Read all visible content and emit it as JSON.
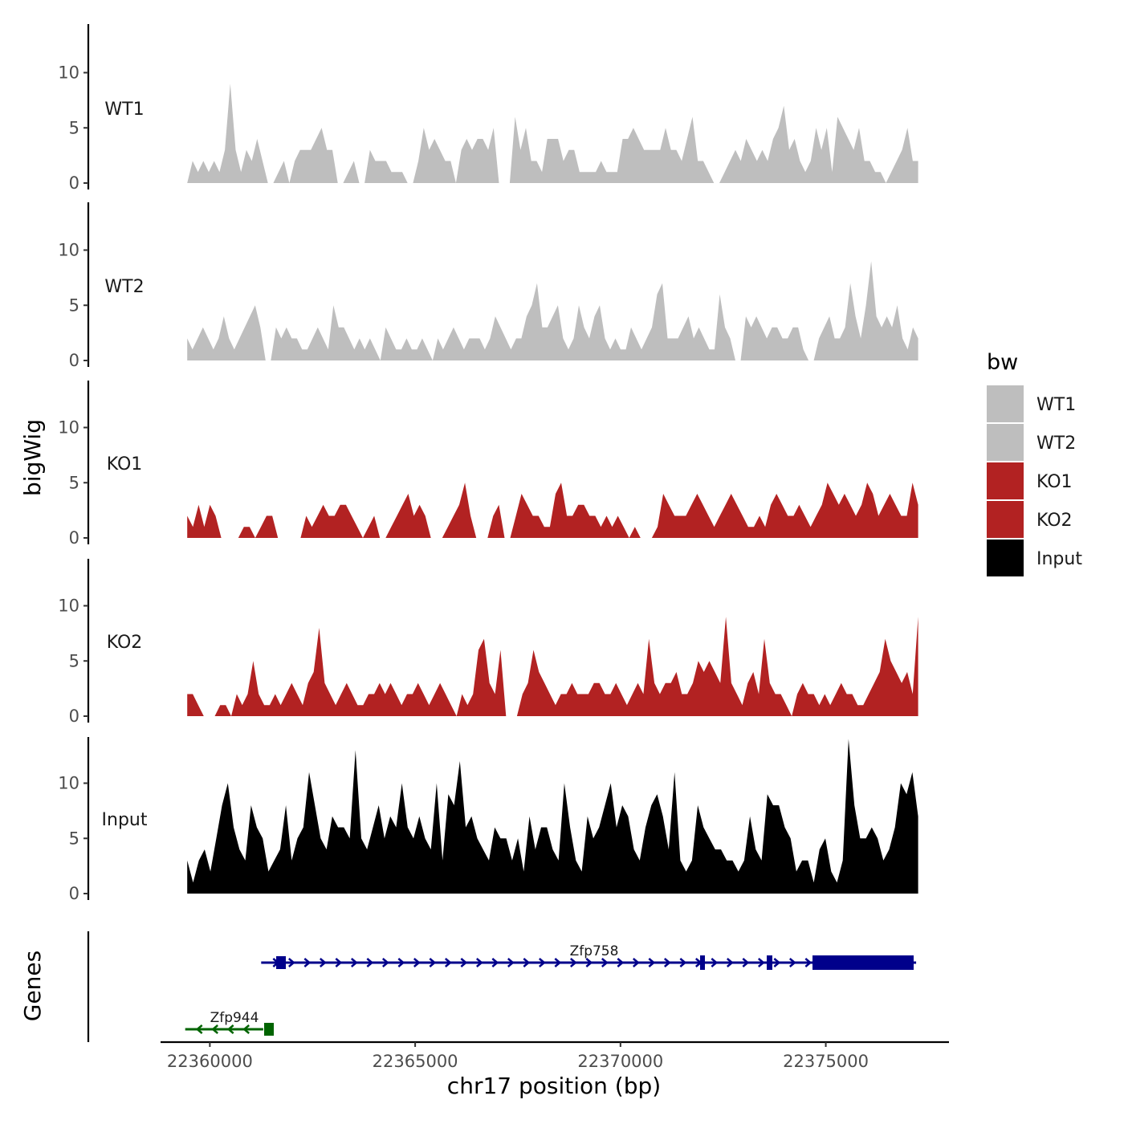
{
  "chart_data": {
    "type": "area",
    "title": "",
    "xlabel": "chr17 position (bp)",
    "ylabel": "bigWig",
    "genes_label": "Genes",
    "xlim": [
      22358800,
      22378000
    ],
    "x_ticks": [
      22360000,
      22365000,
      22370000,
      22375000
    ],
    "x_tick_labels": [
      "22360000",
      "22365000",
      "22370000",
      "22375000"
    ],
    "ylim": [
      0,
      14
    ],
    "y_ticks": [
      0,
      5,
      10
    ],
    "y_tick_labels": [
      "0",
      "5",
      "10"
    ],
    "x_start": 22359450,
    "x_end": 22377250,
    "series": [
      {
        "name": "WT1",
        "group": "WT",
        "color": "#BEBEBE",
        "values": [
          0,
          2,
          1,
          2,
          1,
          2,
          1,
          3,
          9,
          3,
          1,
          3,
          2,
          4,
          2,
          0,
          0,
          1,
          2,
          0,
          2,
          3,
          3,
          3,
          4,
          5,
          3,
          3,
          0,
          0,
          1,
          2,
          0,
          0,
          3,
          2,
          2,
          2,
          1,
          1,
          1,
          0,
          0,
          2,
          5,
          3,
          4,
          3,
          2,
          2,
          0,
          3,
          4,
          3,
          4,
          4,
          3,
          5,
          0,
          0,
          0,
          6,
          3,
          5,
          2,
          2,
          1,
          4,
          4,
          4,
          2,
          3,
          3,
          1,
          1,
          1,
          1,
          2,
          1,
          1,
          1,
          4,
          4,
          5,
          4,
          3,
          3,
          3,
          3,
          5,
          3,
          3,
          2,
          4,
          6,
          2,
          2,
          1,
          0,
          0,
          1,
          2,
          3,
          2,
          4,
          3,
          2,
          3,
          2,
          4,
          5,
          7,
          3,
          4,
          2,
          1,
          2,
          5,
          3,
          5,
          1,
          6,
          5,
          4,
          3,
          5,
          2,
          2,
          1,
          1,
          0,
          1,
          2,
          3,
          5,
          2,
          2
        ]
      },
      {
        "name": "WT2",
        "group": "WT",
        "color": "#BEBEBE",
        "values": [
          2,
          1,
          2,
          3,
          2,
          1,
          2,
          4,
          2,
          1,
          2,
          3,
          4,
          5,
          3,
          0,
          0,
          3,
          2,
          3,
          2,
          2,
          1,
          1,
          2,
          3,
          2,
          1,
          5,
          3,
          3,
          2,
          1,
          2,
          1,
          2,
          1,
          0,
          3,
          2,
          1,
          1,
          2,
          1,
          1,
          2,
          1,
          0,
          2,
          1,
          2,
          3,
          2,
          1,
          2,
          2,
          2,
          1,
          2,
          4,
          3,
          2,
          1,
          2,
          2,
          4,
          5,
          7,
          3,
          3,
          4,
          5,
          2,
          1,
          2,
          5,
          3,
          2,
          4,
          5,
          2,
          1,
          2,
          1,
          1,
          3,
          2,
          1,
          2,
          3,
          6,
          7,
          2,
          2,
          2,
          3,
          4,
          2,
          3,
          2,
          1,
          1,
          6,
          3,
          2,
          0,
          0,
          4,
          3,
          4,
          3,
          2,
          3,
          3,
          2,
          2,
          3,
          3,
          1,
          0,
          0,
          2,
          3,
          4,
          2,
          2,
          3,
          7,
          4,
          2,
          5,
          9,
          4,
          3,
          4,
          3,
          5,
          2,
          1,
          3,
          2
        ]
      },
      {
        "name": "KO1",
        "group": "KO",
        "color": "#B22222",
        "values": [
          2,
          1,
          3,
          1,
          3,
          2,
          0,
          0,
          0,
          0,
          1,
          1,
          0,
          1,
          2,
          2,
          0,
          0,
          0,
          0,
          0,
          2,
          1,
          2,
          3,
          2,
          2,
          3,
          3,
          2,
          1,
          0,
          1,
          2,
          0,
          0,
          1,
          2,
          3,
          4,
          2,
          3,
          2,
          0,
          0,
          0,
          1,
          2,
          3,
          5,
          2,
          0,
          0,
          0,
          2,
          3,
          0,
          0,
          2,
          4,
          3,
          2,
          2,
          1,
          1,
          4,
          5,
          2,
          2,
          3,
          3,
          2,
          2,
          1,
          2,
          1,
          2,
          1,
          0,
          1,
          0,
          0,
          0,
          1,
          4,
          3,
          2,
          2,
          2,
          3,
          4,
          3,
          2,
          1,
          2,
          3,
          4,
          3,
          2,
          1,
          1,
          2,
          1,
          3,
          4,
          3,
          2,
          2,
          3,
          2,
          1,
          2,
          3,
          5,
          4,
          3,
          4,
          3,
          2,
          3,
          5,
          4,
          2,
          3,
          4,
          3,
          2,
          2,
          5,
          3
        ]
      },
      {
        "name": "KO2",
        "group": "KO",
        "color": "#B22222",
        "values": [
          2,
          2,
          1,
          0,
          0,
          0,
          1,
          1,
          0,
          2,
          1,
          2,
          5,
          2,
          1,
          1,
          2,
          1,
          2,
          3,
          2,
          1,
          3,
          4,
          8,
          3,
          2,
          1,
          2,
          3,
          2,
          1,
          1,
          2,
          2,
          3,
          2,
          3,
          2,
          1,
          2,
          2,
          3,
          2,
          1,
          2,
          3,
          2,
          1,
          0,
          2,
          1,
          2,
          6,
          7,
          3,
          2,
          6,
          0,
          0,
          0,
          2,
          3,
          6,
          4,
          3,
          2,
          1,
          2,
          2,
          3,
          2,
          2,
          2,
          3,
          3,
          2,
          2,
          3,
          2,
          1,
          2,
          3,
          2,
          7,
          3,
          2,
          3,
          3,
          4,
          2,
          2,
          3,
          5,
          4,
          5,
          4,
          3,
          9,
          3,
          2,
          1,
          3,
          4,
          2,
          7,
          3,
          2,
          2,
          1,
          0,
          2,
          3,
          2,
          2,
          1,
          2,
          1,
          2,
          3,
          2,
          2,
          1,
          1,
          2,
          3,
          4,
          7,
          5,
          4,
          3,
          4,
          2,
          9
        ]
      },
      {
        "name": "Input",
        "group": "Input",
        "color": "#000000",
        "values": [
          3,
          1,
          3,
          4,
          2,
          5,
          8,
          10,
          6,
          4,
          3,
          8,
          6,
          5,
          2,
          3,
          4,
          8,
          3,
          5,
          6,
          11,
          8,
          5,
          4,
          7,
          6,
          6,
          5,
          13,
          5,
          4,
          6,
          8,
          5,
          7,
          6,
          10,
          6,
          5,
          7,
          5,
          4,
          10,
          3,
          9,
          8,
          12,
          6,
          7,
          5,
          4,
          3,
          6,
          5,
          5,
          3,
          5,
          2,
          7,
          4,
          6,
          6,
          4,
          3,
          10,
          6,
          3,
          2,
          7,
          5,
          6,
          8,
          10,
          6,
          8,
          7,
          4,
          3,
          6,
          8,
          9,
          7,
          4,
          11,
          3,
          2,
          3,
          8,
          6,
          5,
          4,
          4,
          3,
          3,
          2,
          3,
          7,
          4,
          3,
          9,
          8,
          8,
          6,
          5,
          2,
          3,
          3,
          1,
          4,
          5,
          2,
          1,
          3,
          14,
          8,
          5,
          5,
          6,
          5,
          3,
          4,
          6,
          10,
          9,
          11,
          7
        ]
      }
    ],
    "genes": [
      {
        "name": "Zfp758",
        "strand": "+",
        "color": "#00008B",
        "start": 22361250,
        "end": 22377200
      },
      {
        "name": "Zfp944",
        "strand": "-",
        "color": "#006400",
        "start": 22359400,
        "end": 22361300
      }
    ],
    "legend": {
      "title": "bw",
      "position": "right",
      "entries": [
        {
          "label": "WT1",
          "color": "#BEBEBE"
        },
        {
          "label": "WT2",
          "color": "#BEBEBE"
        },
        {
          "label": "KO1",
          "color": "#B22222"
        },
        {
          "label": "KO2",
          "color": "#B22222"
        },
        {
          "label": "Input",
          "color": "#000000"
        }
      ]
    }
  }
}
